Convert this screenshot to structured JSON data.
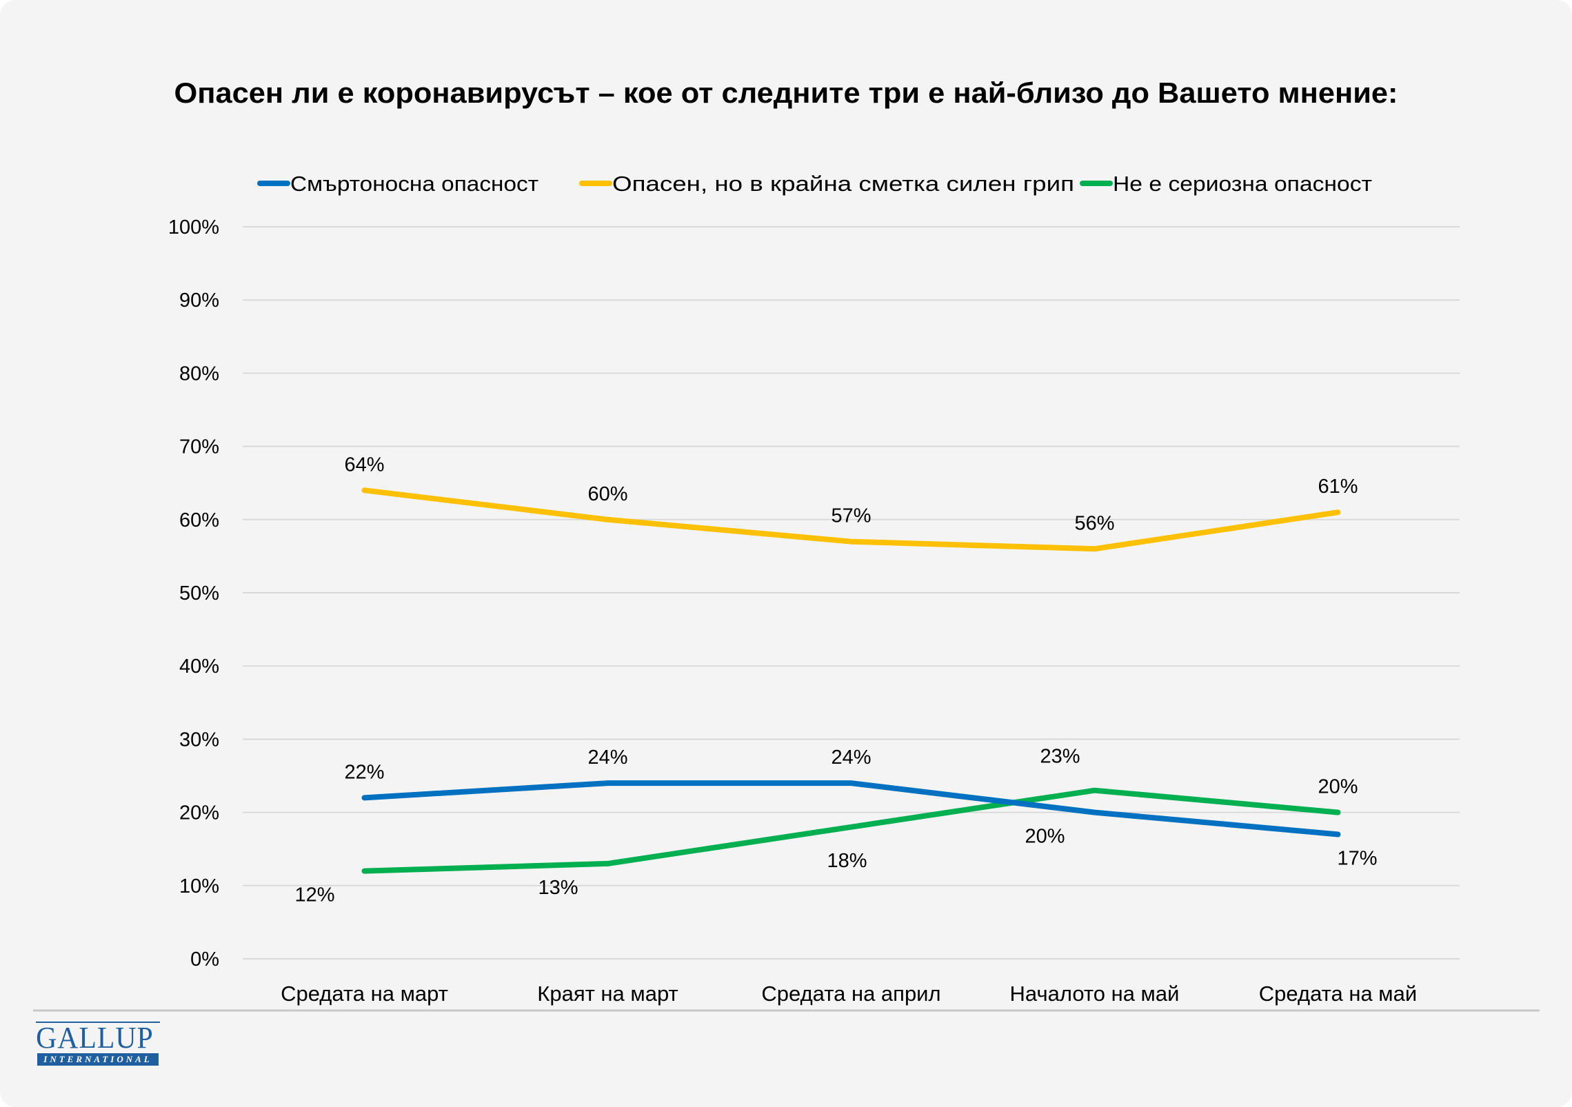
{
  "chart_data": {
    "type": "line",
    "title": "Опасен ли е коронавирусът – кое от следните три е най-близо до Вашето мнение:",
    "xlabel": "",
    "ylabel": "",
    "ylim": [
      0,
      100
    ],
    "y_ticks": [
      "0%",
      "10%",
      "20%",
      "30%",
      "40%",
      "50%",
      "60%",
      "70%",
      "80%",
      "90%",
      "100%"
    ],
    "grid": true,
    "legend_position": "top",
    "categories": [
      "Средата на март",
      "Краят на март",
      "Средата на април",
      "Началото на май",
      "Средата на май"
    ],
    "series": [
      {
        "name": "Смъртоносна опасност",
        "color": "#0070C0",
        "values": [
          22,
          24,
          24,
          20,
          17
        ],
        "labels": [
          "22%",
          "24%",
          "24%",
          "20%",
          "17%"
        ],
        "label_positions": [
          "above",
          "above",
          "above",
          "below-left",
          "below-right"
        ]
      },
      {
        "name": "Опасен, но в крайна сметка силен грип",
        "color": "#FFC000",
        "values": [
          64,
          60,
          57,
          56,
          61
        ],
        "labels": [
          "64%",
          "60%",
          "57%",
          "56%",
          "61%"
        ],
        "label_positions": [
          "above",
          "above",
          "above",
          "above",
          "above"
        ]
      },
      {
        "name": "Не е сериозна опасност",
        "color": "#00B050",
        "values": [
          12,
          13,
          18,
          23,
          20
        ],
        "labels": [
          "12%",
          "13%",
          "18%",
          "23%",
          "20%"
        ],
        "label_positions": [
          "below-left",
          "below-left",
          "below",
          "above-left",
          "above"
        ]
      }
    ]
  },
  "logo": {
    "main": "GALLUP",
    "sub": "INTERNATIONAL",
    "color": "#1f5fa0"
  },
  "colors": {
    "background": "#f4f4f4",
    "grid": "#d9d9d9",
    "separator": "#c8c8c8"
  }
}
